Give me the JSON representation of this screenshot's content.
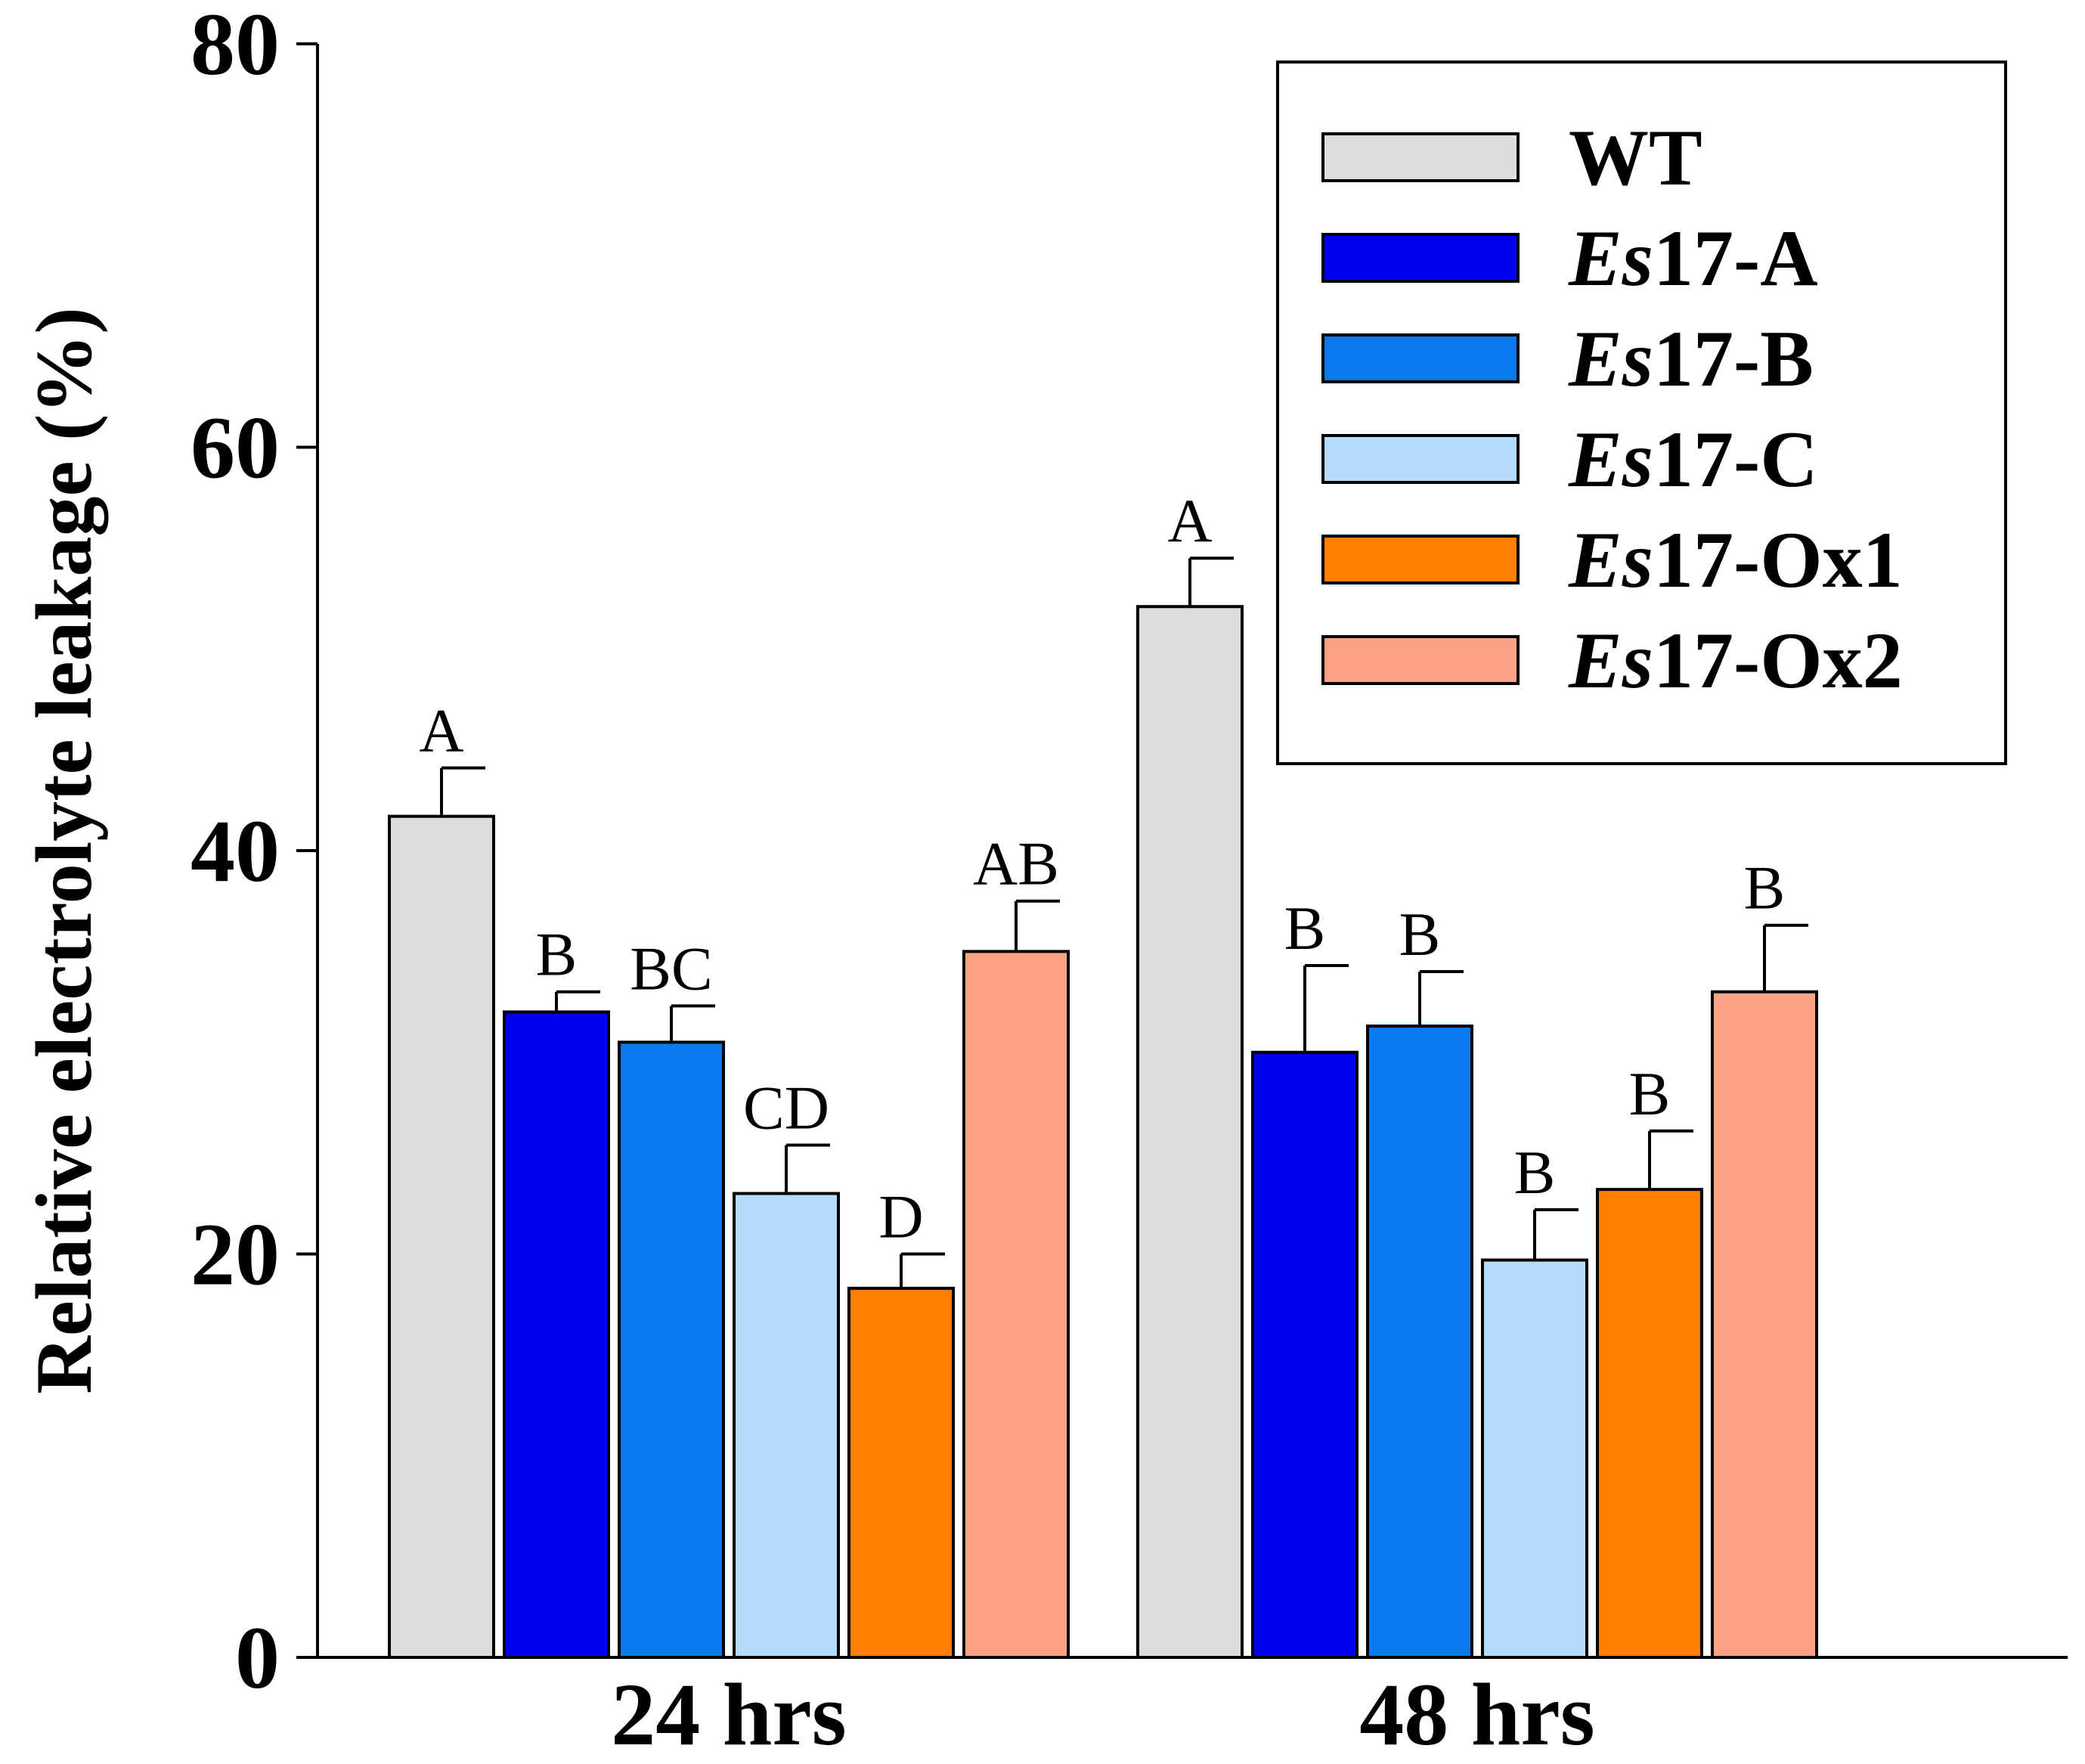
{
  "chart_data": {
    "type": "bar",
    "title": "",
    "xlabel": "",
    "ylabel": "Relative electrolyte leakage (%)",
    "ylim": [
      0,
      80
    ],
    "yticks": [
      0,
      20,
      40,
      60,
      80
    ],
    "categories": [
      "24 hrs",
      "48 hrs"
    ],
    "series": [
      {
        "name": "WT",
        "prefix": "",
        "suffix": "WT",
        "color": "#dcdcdc",
        "values": [
          41.7,
          52.1
        ],
        "errors": [
          2.4,
          2.4
        ],
        "labels": [
          "A",
          "A"
        ]
      },
      {
        "name": "Es17-A",
        "prefix": "Es",
        "suffix": "17-A",
        "color": "#0000ee",
        "values": [
          32.0,
          30.0
        ],
        "errors": [
          1.0,
          4.3
        ],
        "labels": [
          "B",
          "B"
        ]
      },
      {
        "name": "Es17-B",
        "prefix": "Es",
        "suffix": "17-B",
        "color": "#0a78ee",
        "values": [
          30.5,
          31.3
        ],
        "errors": [
          1.8,
          2.7
        ],
        "labels": [
          "BC",
          "B"
        ]
      },
      {
        "name": "Es17-C",
        "prefix": "Es",
        "suffix": "17-C",
        "color": "#b4dcfa",
        "values": [
          23.0,
          19.7
        ],
        "errors": [
          2.4,
          2.5
        ],
        "labels": [
          "CD",
          "B"
        ]
      },
      {
        "name": "Es17-Ox1",
        "prefix": "Es",
        "suffix": "17-Ox1",
        "color": "#ff8000",
        "values": [
          18.3,
          23.2
        ],
        "errors": [
          1.7,
          2.9
        ],
        "labels": [
          "D",
          "B"
        ]
      },
      {
        "name": "Es17-Ox2",
        "prefix": "Es",
        "suffix": "17-Ox2",
        "color": "#fca386",
        "values": [
          35.0,
          33.0
        ],
        "errors": [
          2.5,
          3.3
        ],
        "labels": [
          "AB",
          "B"
        ]
      }
    ],
    "legend_position": "top-right",
    "grid": false
  }
}
